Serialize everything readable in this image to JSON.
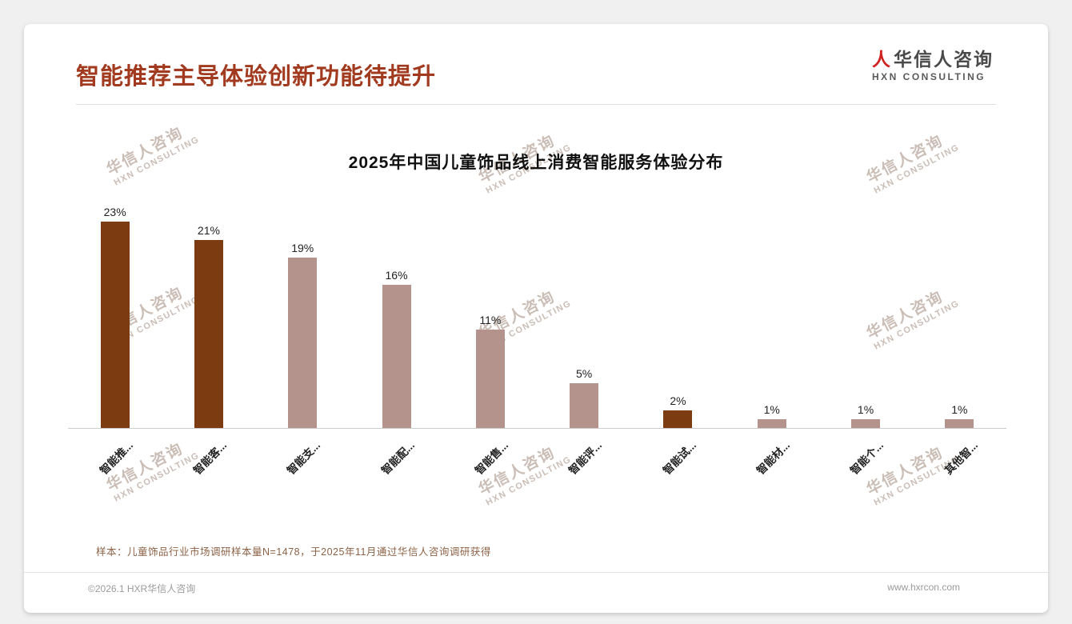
{
  "page": {
    "title": "智能推荐主导体验创新功能待提升",
    "logo": {
      "mark": "人",
      "cn": "华信人咨询",
      "en": "HXN CONSULTING"
    },
    "watermark": {
      "cn": "华信人咨询",
      "en": "HXN CONSULTING"
    },
    "footnote": "样本：儿童饰品行业市场调研样本量N=1478，于2025年11月通过华信人咨询调研获得",
    "footer_left": "©2026.1 HXR华信人咨询",
    "footer_right": "www.hxrcon.com"
  },
  "colors": {
    "title": "#A13A1E",
    "bar_dark": "#7D3B12",
    "bar_light": "#B3938C",
    "footnote": "#8C6246"
  },
  "chart_data": {
    "type": "bar",
    "title": "2025年中国儿童饰品线上消费智能服务体验分布",
    "categories": [
      "智能推...",
      "智能客...",
      "智能支...",
      "智能配...",
      "智能售...",
      "智能评...",
      "智能试...",
      "智能材...",
      "智能个...",
      "其他智..."
    ],
    "values": [
      23,
      21,
      19,
      16,
      11,
      5,
      2,
      1,
      1,
      1
    ],
    "value_labels": [
      "23%",
      "21%",
      "19%",
      "16%",
      "11%",
      "5%",
      "2%",
      "1%",
      "1%",
      "1%"
    ],
    "color_pattern": [
      "dark",
      "dark",
      "light",
      "light",
      "light",
      "light",
      "dark",
      "light",
      "light",
      "light"
    ],
    "xlabel": "",
    "ylabel": "",
    "ylim": [
      0,
      25
    ],
    "grid": false,
    "legend": false,
    "data_labels": true
  }
}
